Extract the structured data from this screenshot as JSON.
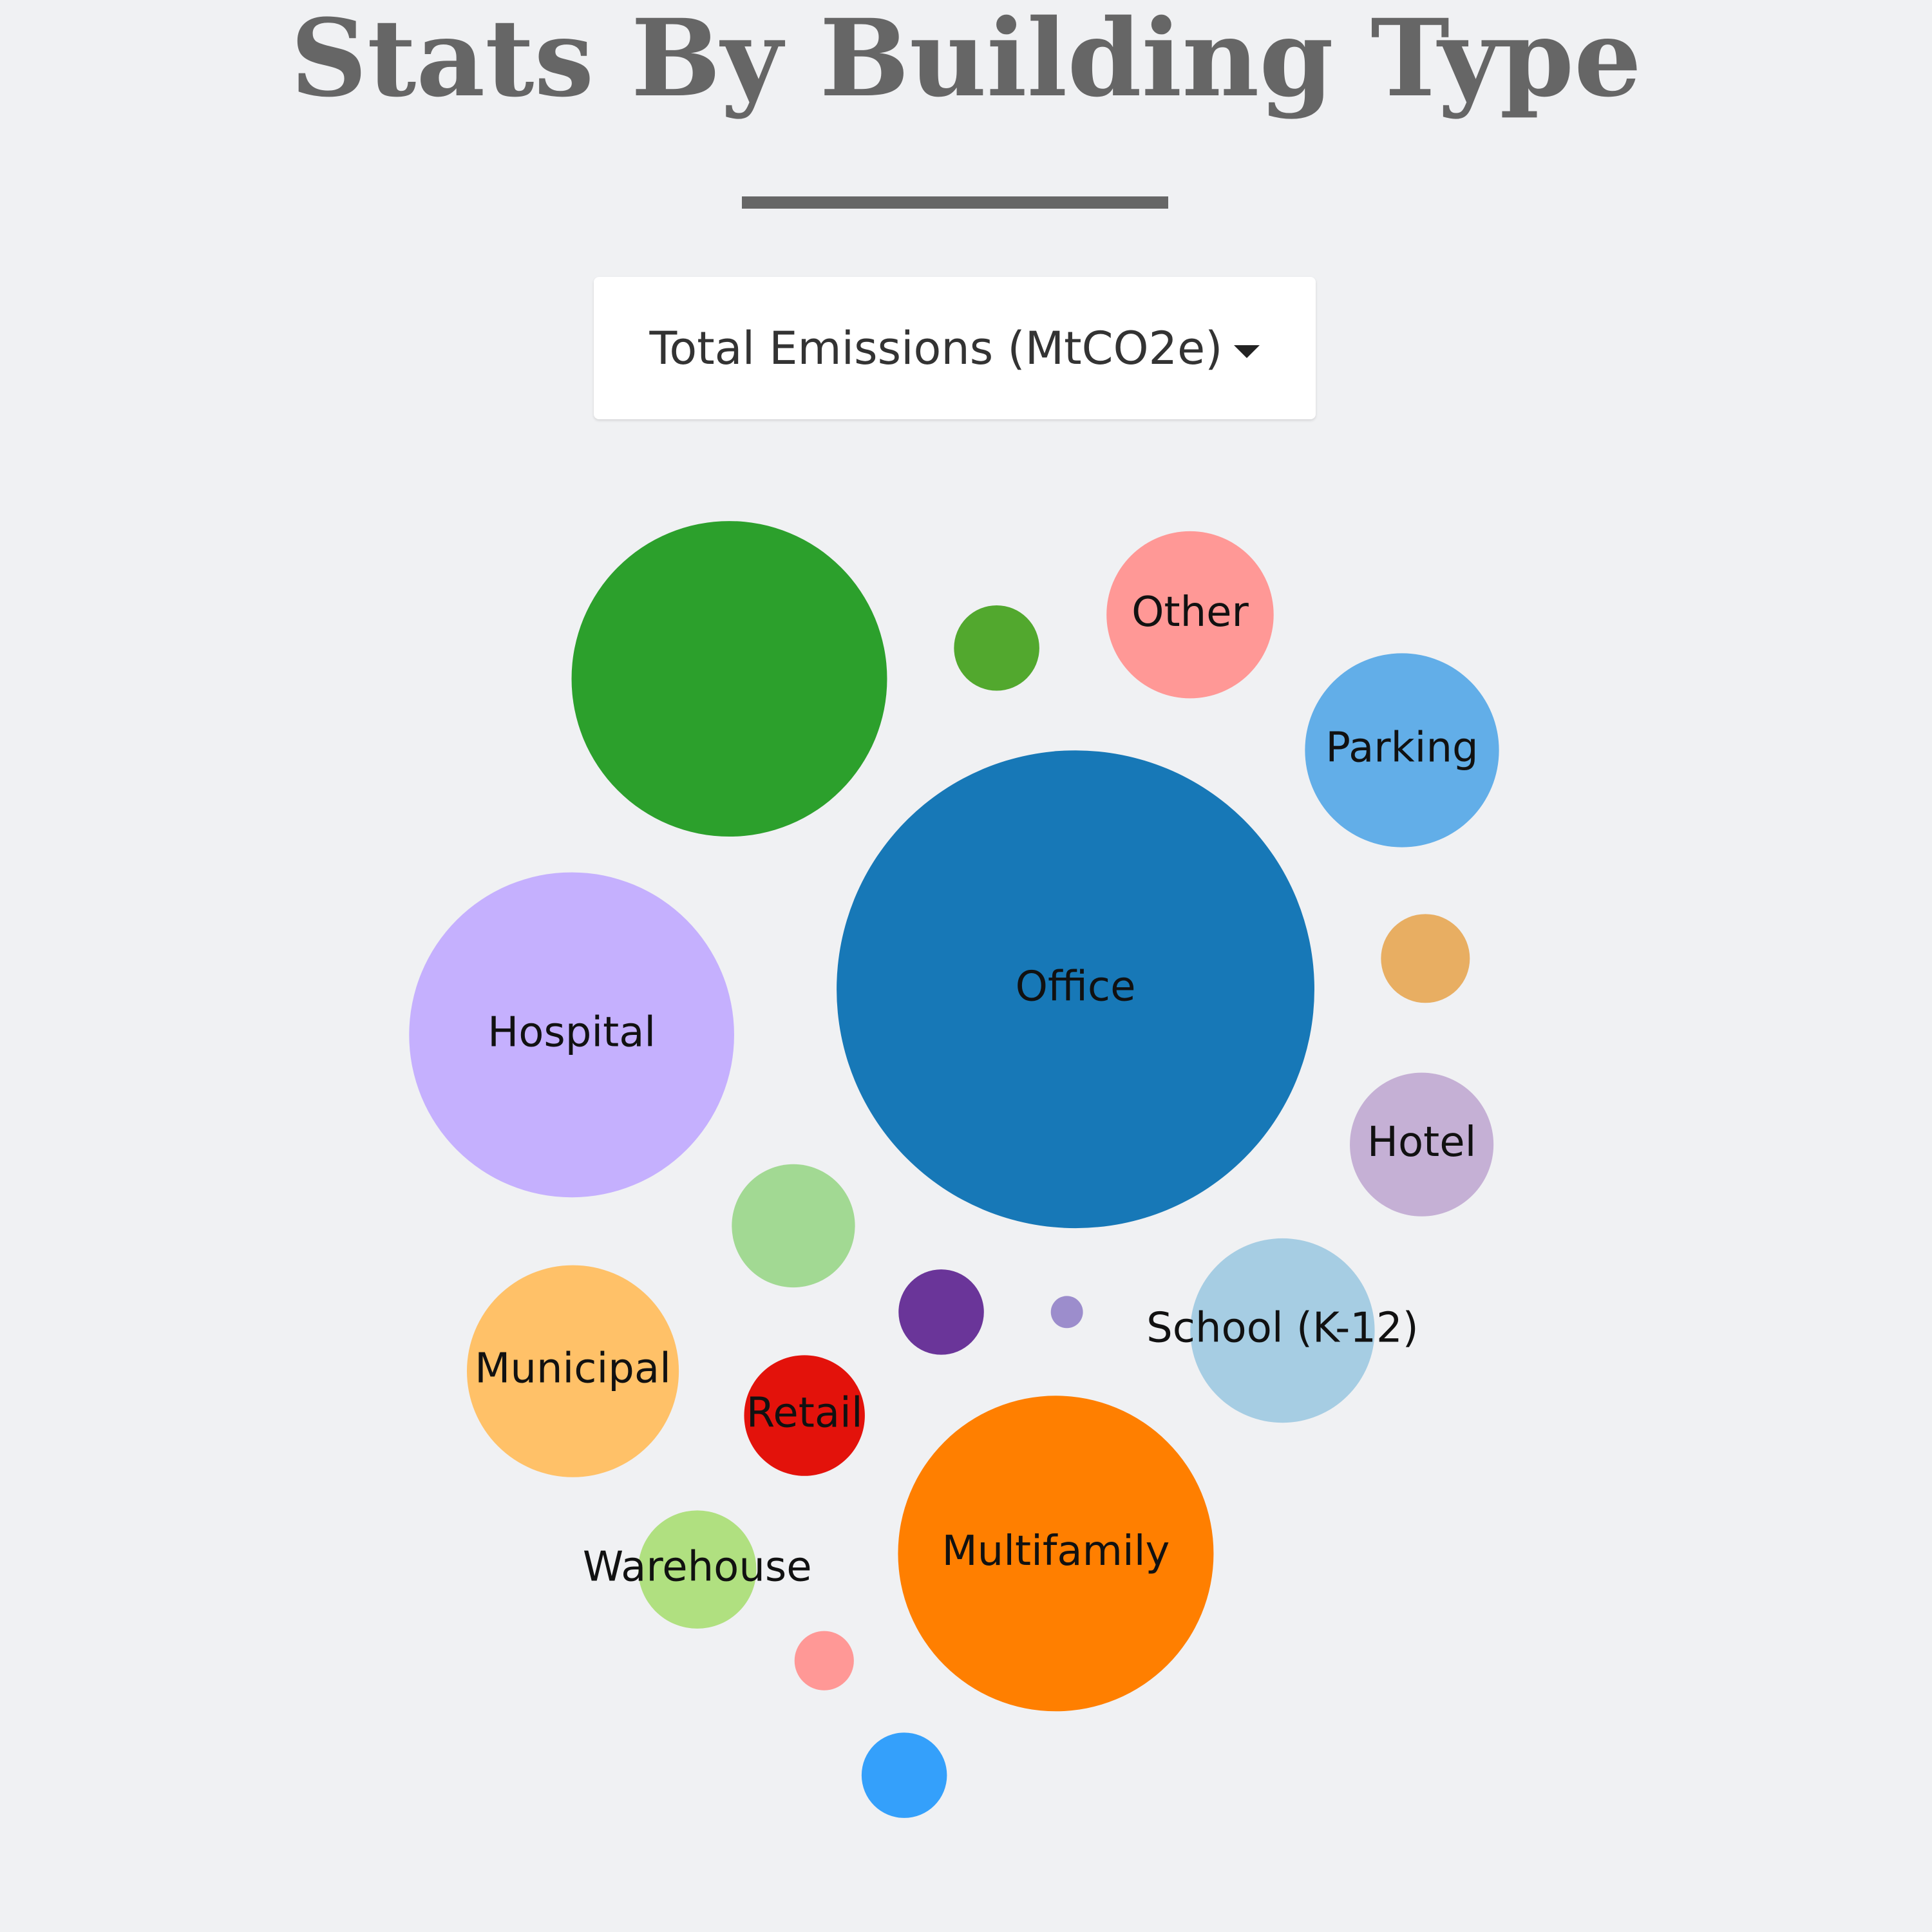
{
  "header": {
    "title": "Stats By Building Type"
  },
  "dropdown": {
    "label": "Total Emissions (MtCO2e)"
  },
  "chart_data": {
    "type": "bubble",
    "categories": [
      null,
      null,
      "Other",
      "Parking",
      "Office",
      null,
      "Hospital",
      "Hotel",
      null,
      null,
      null,
      "School (K-12)",
      "Municipal",
      "Retail",
      "Multifamily",
      "Warehouse",
      null,
      null
    ],
    "values": [
      164,
      12,
      46,
      62,
      376,
      13,
      174,
      34,
      25,
      12,
      1.7,
      56,
      74,
      24,
      164,
      23,
      5.8,
      12
    ],
    "colors": [
      "#2ca02c",
      "#52a82e",
      "#ff9896",
      "#62aee8",
      "#1778b7",
      "#e8ae62",
      "#c5b0fe",
      "#c5b0d5",
      "#a2d993",
      "#6a3599",
      "#9c8dcc",
      "#a6cde3",
      "#ffc168",
      "#e3120b",
      "#ff7f00",
      "#b0e080",
      "#ff9896",
      "#34a0fb"
    ]
  }
}
